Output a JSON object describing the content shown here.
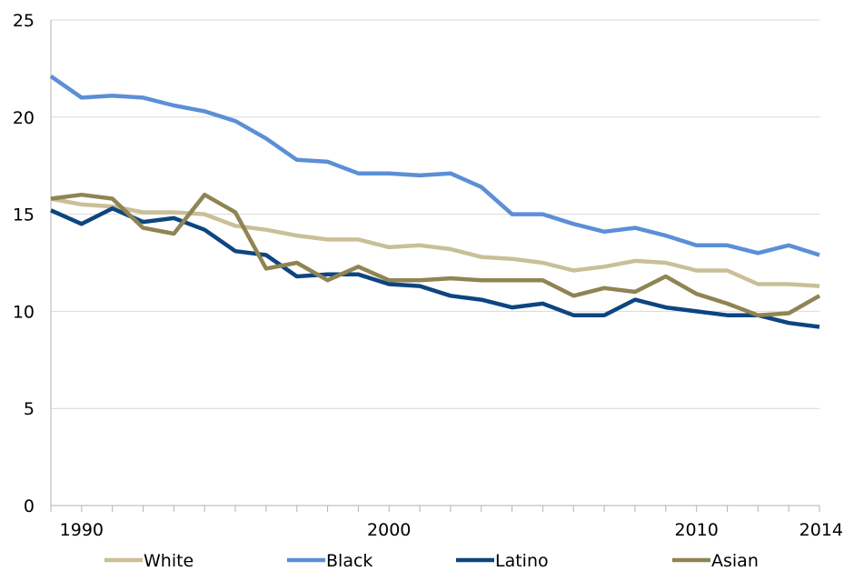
{
  "chart_data": {
    "type": "line",
    "title": "",
    "xlabel": "",
    "ylabel": "",
    "xlim": [
      1989,
      2014
    ],
    "ylim": [
      0,
      25
    ],
    "yticks": [
      "0",
      "5",
      "10",
      "15",
      "20",
      "25"
    ],
    "xtick_labels": [
      {
        "value": 1990,
        "label": "1990"
      },
      {
        "value": 2000,
        "label": "2000"
      },
      {
        "value": 2010,
        "label": "2010"
      },
      {
        "value": 2014,
        "label": "2014"
      }
    ],
    "grid": "horizontal",
    "legend_position": "bottom",
    "x": [
      1989,
      1990,
      1991,
      1992,
      1993,
      1994,
      1995,
      1996,
      1997,
      1998,
      1999,
      2000,
      2001,
      2002,
      2003,
      2004,
      2005,
      2006,
      2007,
      2008,
      2009,
      2010,
      2011,
      2012,
      2013,
      2014
    ],
    "series": [
      {
        "name": "White",
        "color": "#c9bf98",
        "values": [
          15.8,
          15.5,
          15.4,
          15.1,
          15.1,
          15.0,
          14.4,
          14.2,
          13.9,
          13.7,
          13.7,
          13.3,
          13.4,
          13.2,
          12.8,
          12.7,
          12.5,
          12.1,
          12.3,
          12.6,
          12.5,
          12.1,
          12.1,
          11.4,
          11.4,
          11.3
        ]
      },
      {
        "name": "Black",
        "color": "#5b8fd6",
        "values": [
          22.1,
          21.0,
          21.1,
          21.0,
          20.6,
          20.3,
          19.8,
          18.9,
          17.8,
          17.7,
          17.1,
          17.1,
          17.0,
          17.1,
          16.4,
          15.0,
          15.0,
          14.5,
          14.1,
          14.3,
          13.9,
          13.4,
          13.4,
          13.0,
          13.4,
          12.9
        ]
      },
      {
        "name": "Latino",
        "color": "#0d4580",
        "values": [
          15.2,
          14.5,
          15.3,
          14.6,
          14.8,
          14.2,
          13.1,
          12.9,
          11.8,
          11.9,
          11.9,
          11.4,
          11.3,
          10.8,
          10.6,
          10.2,
          10.4,
          9.8,
          9.8,
          10.6,
          10.2,
          10.0,
          9.8,
          9.8,
          9.4,
          9.2
        ]
      },
      {
        "name": "Asian",
        "color": "#8f8453",
        "values": [
          15.8,
          16.0,
          15.8,
          14.3,
          14.0,
          16.0,
          15.1,
          12.2,
          12.5,
          11.6,
          12.3,
          11.6,
          11.6,
          11.7,
          11.6,
          11.6,
          11.6,
          10.8,
          11.2,
          11.0,
          11.8,
          10.9,
          10.4,
          9.8,
          9.9,
          10.8
        ]
      }
    ]
  }
}
